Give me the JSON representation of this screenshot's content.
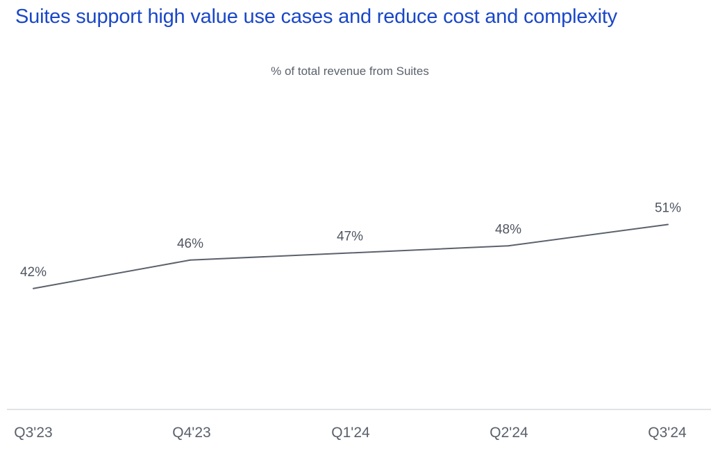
{
  "title": "Suites support high value use cases and reduce cost and complexity",
  "chart_data": {
    "type": "line",
    "title": "% of total revenue from Suites",
    "categories": [
      "Q3'23",
      "Q4'23",
      "Q1'24",
      "Q2'24",
      "Q3'24"
    ],
    "values": [
      42,
      46,
      47,
      48,
      51
    ],
    "data_labels": [
      "42%",
      "46%",
      "47%",
      "48%",
      "51%"
    ],
    "unit": "%",
    "ylim": [
      25,
      65
    ],
    "grid": false,
    "legend": "none",
    "line_color": "#5b616c",
    "title_color": "#1a47c8"
  }
}
